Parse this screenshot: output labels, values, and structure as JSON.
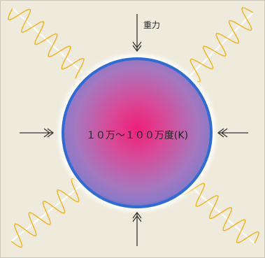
{
  "labels": {
    "gravity": "重力",
    "temperature": "１０万～１００万度(K)"
  }
}
